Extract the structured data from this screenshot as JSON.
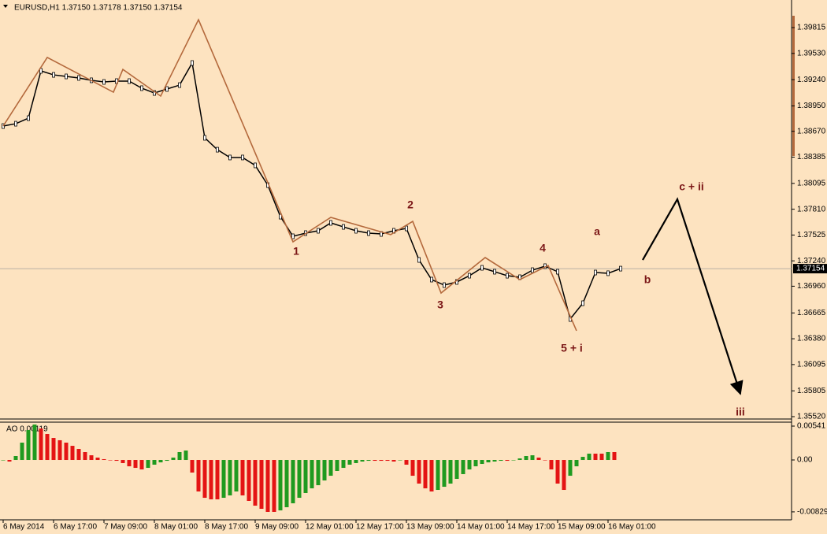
{
  "chart_data": {
    "type": "line",
    "title": "EURUSD,H1  1.37150 1.37178 1.37150 1.37154",
    "color": "#000000",
    "values": [
      1.38728,
      1.38754,
      1.38815,
      1.39337,
      1.39293,
      1.39276,
      1.39259,
      1.39233,
      1.39215,
      1.39224,
      1.39224,
      1.39146,
      1.39093,
      1.39137,
      1.3918,
      1.39424,
      1.38598,
      1.38467,
      1.38381,
      1.38381,
      1.38294,
      1.38076,
      1.37728,
      1.37511,
      1.37546,
      1.37572,
      1.37659,
      1.37615,
      1.37572,
      1.37546,
      1.37537,
      1.37572,
      1.37598,
      1.3725,
      1.37033,
      1.36972,
      1.37007,
      1.37076,
      1.37163,
      1.3712,
      1.37076,
      1.37059,
      1.37137,
      1.37181,
      1.3712,
      1.36598,
      1.36772,
      1.37111,
      1.37103,
      1.37154
    ],
    "ylim": [
      1.35494,
      1.39963
    ],
    "yticks": [
      1.39815,
      {
        "value": 1.3953,
        "label": "1.39530"
      },
      {
        "value": 1.3924,
        "label": "1.39240"
      },
      {
        "value": 1.3895,
        "label": "1.38950"
      },
      {
        "value": 1.3867,
        "label": "1.38670"
      },
      1.38385,
      1.38095,
      {
        "value": 1.3781,
        "label": "1.37810"
      },
      1.37525,
      {
        "value": 1.3724,
        "label": "1.37240"
      },
      {
        "value": 1.3696,
        "label": "1.36960"
      },
      1.36665,
      {
        "value": 1.3638,
        "label": "1.36380"
      },
      1.36095,
      1.35805,
      {
        "value": 1.3552,
        "label": "1.35520"
      }
    ],
    "current_price": 1.37154,
    "xlabels": [
      "6 May 2014",
      "6 May 17:00",
      "7 May 09:00",
      "8 May 01:00",
      "8 May 17:00",
      "9 May 09:00",
      "12 May 01:00",
      "12 May 17:00",
      "13 May 09:00",
      "14 May 01:00",
      "14 May 17:00",
      "15 May 09:00",
      "16 May 01:00"
    ],
    "zigzag": {
      "color": "#b4693c",
      "x": [
        0,
        14,
        35,
        38,
        50,
        62,
        92,
        104,
        123,
        130,
        139,
        153,
        164,
        173,
        182
      ],
      "values": [
        1.38728,
        1.39485,
        1.39102,
        1.39354,
        1.39059,
        1.39902,
        1.3745,
        1.3772,
        1.37529,
        1.37676,
        1.36885,
        1.37276,
        1.37033,
        1.37189,
        1.36468
      ]
    },
    "projection": {
      "color": "#000000",
      "x": [
        203,
        214,
        234
      ],
      "values": [
        1.3725,
        1.3792,
        1.35772
      ]
    },
    "wave_labels": [
      "1",
      "2",
      "3",
      "4",
      "5 + i",
      "a",
      "b",
      "c + ii",
      "iii"
    ],
    "label_color": "#7b1616",
    "ao": {
      "label": "AO 0.00119",
      "up_color": "#1f9a1f",
      "down_color": "#e41414",
      "ylim": [
        -0.00956,
        0.00604
      ],
      "yticks": [
        0.00541,
        {
          "value": 0,
          "label": "0.00"
        },
        -0.00829
      ],
      "values": [
        0,
        -0.00025,
        0.00063,
        0.00277,
        0.00478,
        0.00566,
        0.00503,
        0.00415,
        0.00352,
        0.00315,
        0.00277,
        0.00226,
        0.00176,
        0.00126,
        0.00075,
        0.00038,
        0.00013,
        0,
        -0.00013,
        -0.0005,
        -0.00101,
        -0.00126,
        -0.00151,
        -0.00126,
        -0.00075,
        -0.00038,
        -0.00013,
        0.00038,
        0.00126,
        0.00151,
        -0.00201,
        -0.00503,
        -0.00604,
        -0.00629,
        -0.00629,
        -0.00604,
        -0.00566,
        -0.00503,
        -0.00566,
        -0.00654,
        -0.0073,
        -0.0078,
        -0.0083,
        -0.0083,
        -0.00805,
        -0.00755,
        -0.00692,
        -0.00604,
        -0.00528,
        -0.00453,
        -0.00403,
        -0.00327,
        -0.00252,
        -0.00176,
        -0.00126,
        -0.00075,
        -0.0005,
        -0.00025,
        -0.00013,
        -0.00013,
        -0.00013,
        -0.00013,
        -0.00025,
        0,
        -0.00075,
        -0.00252,
        -0.00377,
        -0.00453,
        -0.00503,
        -0.00478,
        -0.00428,
        -0.00377,
        -0.00302,
        -0.00226,
        -0.00151,
        -0.00101,
        -0.00063,
        -0.00038,
        -0.00025,
        -0.00013,
        -0.00013,
        0,
        0.00025,
        0.00063,
        0.00075,
        0.00038,
        0,
        -0.00151,
        -0.00377,
        -0.00478,
        -0.00252,
        -0.00101,
        0.0005,
        0.00101,
        0.00101,
        0.00101,
        0.00126,
        0.00126
      ]
    }
  }
}
